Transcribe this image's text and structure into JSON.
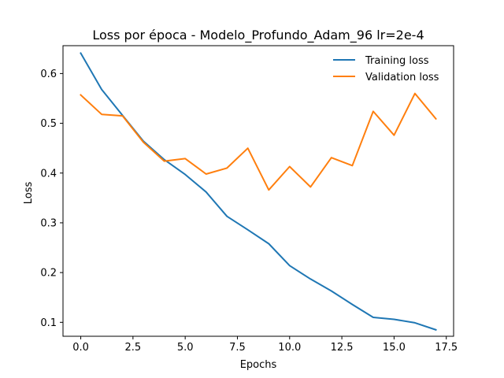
{
  "chart_data": {
    "type": "line",
    "title": "Loss por época - Modelo_Profundo_Adam_96 lr=2e-4",
    "xlabel": "Epochs",
    "ylabel": "Loss",
    "xlim": [
      -0.85,
      17.85
    ],
    "ylim": [
      0.072,
      0.656
    ],
    "xticks": [
      0.0,
      2.5,
      5.0,
      7.5,
      10.0,
      12.5,
      15.0,
      17.5
    ],
    "xtick_labels": [
      "0.0",
      "2.5",
      "5.0",
      "7.5",
      "10.0",
      "12.5",
      "15.0",
      "17.5"
    ],
    "yticks": [
      0.1,
      0.2,
      0.3,
      0.4,
      0.5,
      0.6
    ],
    "ytick_labels": [
      "0.1",
      "0.2",
      "0.3",
      "0.4",
      "0.5",
      "0.6"
    ],
    "grid": false,
    "legend_position": "top-right",
    "x": [
      0,
      1,
      2,
      3,
      4,
      5,
      6,
      7,
      8,
      9,
      10,
      11,
      12,
      13,
      14,
      15,
      16,
      17
    ],
    "series": [
      {
        "name": "Training loss",
        "color": "#1f77b4",
        "values": [
          0.641,
          0.568,
          0.516,
          0.464,
          0.427,
          0.397,
          0.362,
          0.313,
          0.286,
          0.258,
          0.214,
          0.187,
          0.163,
          0.136,
          0.11,
          0.106,
          0.099,
          0.085
        ]
      },
      {
        "name": "Validation loss",
        "color": "#ff7f0e",
        "values": [
          0.557,
          0.518,
          0.515,
          0.462,
          0.424,
          0.429,
          0.398,
          0.41,
          0.45,
          0.366,
          0.413,
          0.372,
          0.431,
          0.415,
          0.524,
          0.476,
          0.56,
          0.509
        ]
      }
    ]
  }
}
